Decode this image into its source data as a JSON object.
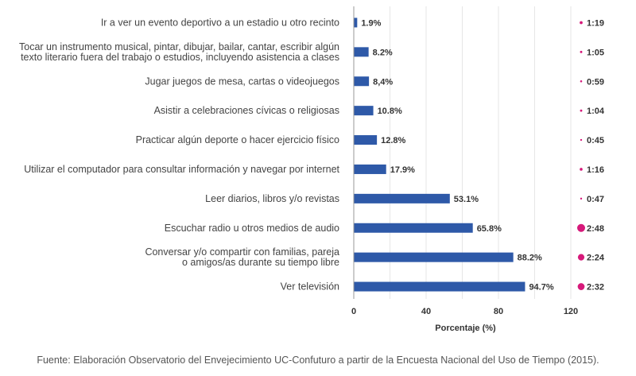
{
  "chart_data": {
    "type": "bar",
    "orientation": "horizontal",
    "categories": [
      [
        "Ir a ver un evento deportivo a un estadio u otro recinto"
      ],
      [
        "Tocar un instrumento musical, pintar, dibujar, bailar, cantar, escribir algún",
        "texto literario fuera del trabajo o estudios, incluyendo asistencia a clases"
      ],
      [
        "Jugar juegos de mesa, cartas o videojuegos"
      ],
      [
        "Asistir a celebraciones cívicas o religiosas"
      ],
      [
        "Practicar algún deporte o hacer ejercicio físico"
      ],
      [
        "Utilizar el computador para consultar información y navegar por internet"
      ],
      [
        "Leer diarios, libros y/o revistas"
      ],
      [
        "Escuchar radio u otros medios de audio"
      ],
      [
        "Conversar y/o compartir con familias, pareja",
        "o amigos/as durante su tiempo libre"
      ],
      [
        "Ver televisión"
      ]
    ],
    "values": [
      1.9,
      8.2,
      8.4,
      10.8,
      12.8,
      17.9,
      53.1,
      65.8,
      88.2,
      94.7
    ],
    "value_labels": [
      "1.9%",
      "8.2%",
      "8,4%",
      "10.8%",
      "12.8%",
      "17.9%",
      "53.1%",
      "65.8%",
      "88.2%",
      "94.7%"
    ],
    "time_labels": [
      "1:19",
      "1:05",
      "0:59",
      "1:04",
      "0:45",
      "1:16",
      "0:47",
      "2:48",
      "2:24",
      "2:32"
    ],
    "time_minutes": [
      79,
      65,
      59,
      64,
      45,
      76,
      47,
      168,
      144,
      152
    ],
    "xlabel": "Porcentaje (%)",
    "xlim": [
      0,
      120
    ],
    "xticks": [
      "0",
      "40",
      "80",
      "120"
    ],
    "grid": true,
    "colors": {
      "bar": "#2e59a8",
      "dot": "#d6197a",
      "grid": "#e6e6e6",
      "axis": "#999999"
    }
  },
  "footer": {
    "source": "Fuente: Elaboración Observatorio del Envejecimiento UC-Confuturo a partir de la Encuesta Nacional del Uso de Tiempo (2015)."
  }
}
